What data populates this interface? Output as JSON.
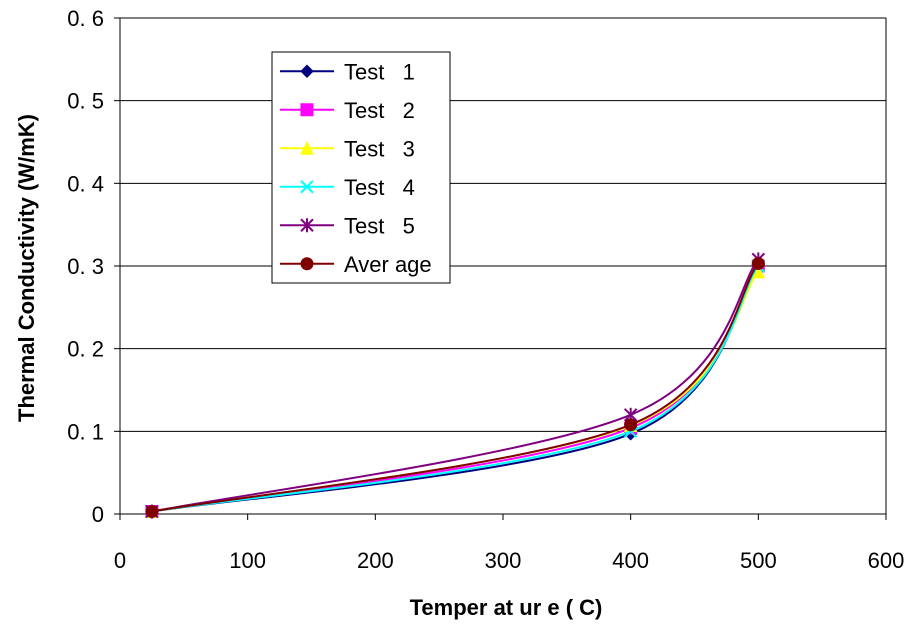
{
  "chart_data": {
    "type": "line",
    "title": "",
    "xlabel": "Temper at ur e  ( C)",
    "ylabel": "Thermal Conductivity (W/mK)",
    "xlim": [
      0,
      600
    ],
    "ylim": [
      0,
      0.6
    ],
    "x_ticks": [
      "0",
      "100",
      "200",
      "300",
      "400",
      "500",
      "600"
    ],
    "y_ticks": [
      "0",
      "0. 1",
      "0. 2",
      "0. 3",
      "0. 4",
      "0. 5",
      "0. 6"
    ],
    "grid": "horizontal",
    "legend_position": "top-left",
    "x": [
      25,
      400,
      500
    ],
    "series": [
      {
        "name": "Test   1",
        "color": "#000080",
        "marker": "diamond",
        "values": [
          0.003,
          0.097,
          0.302
        ]
      },
      {
        "name": "Test   2",
        "color": "#ff00ff",
        "marker": "square",
        "values": [
          0.003,
          0.104,
          0.3
        ]
      },
      {
        "name": "Test   3",
        "color": "#ffff00",
        "marker": "triangle",
        "values": [
          0.003,
          0.107,
          0.293
        ]
      },
      {
        "name": "Test   4",
        "color": "#00ffff",
        "marker": "x",
        "values": [
          0.003,
          0.1,
          0.3
        ]
      },
      {
        "name": "Test   5",
        "color": "#800080",
        "marker": "asterisk",
        "values": [
          0.003,
          0.12,
          0.308
        ]
      },
      {
        "name": "Aver age",
        "color": "#800000",
        "marker": "circle",
        "values": [
          0.003,
          0.108,
          0.303
        ]
      }
    ]
  }
}
